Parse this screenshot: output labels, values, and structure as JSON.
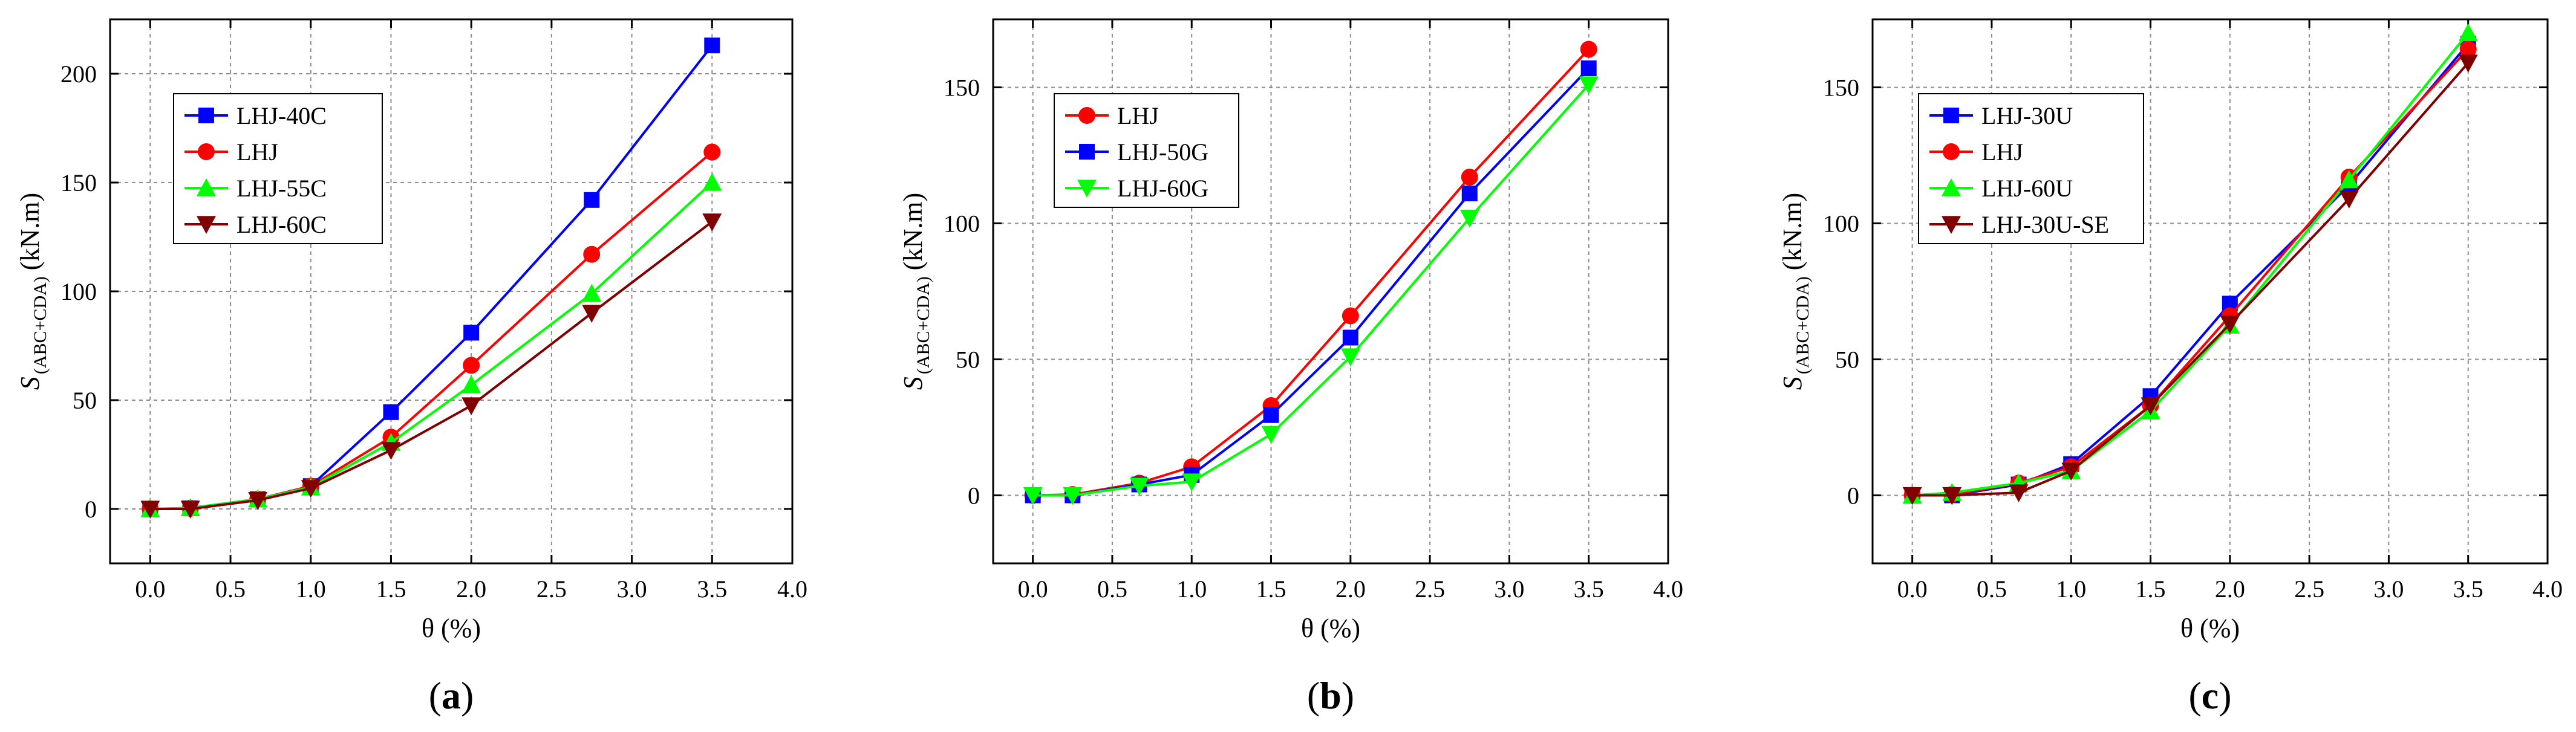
{
  "chart_data": [
    {
      "type": "line",
      "panel_label": "(a)",
      "panel_letter": "a",
      "xlabel": "θ (%)",
      "ylabel": "S (ABC+CDA) (kN.m)",
      "ylabel_main": "S",
      "ylabel_sub": "(ABC+CDA)",
      "ylabel_unit": "(kN.m)",
      "xlim": [
        -0.25,
        4.0
      ],
      "ylim": [
        -25,
        225
      ],
      "xticks": [
        "0.0",
        "0.5",
        "1.0",
        "1.5",
        "2.0",
        "2.5",
        "3.0",
        "3.5",
        "4.0"
      ],
      "yticks": [
        "0",
        "50",
        "100",
        "150",
        "200"
      ],
      "grid": true,
      "legend_position": "upper-left",
      "x": [
        0,
        0.25,
        0.67,
        1.0,
        1.5,
        2.0,
        2.75,
        3.5
      ],
      "series": [
        {
          "name": "LHJ-40C",
          "color": "#0000ff",
          "marker": "square",
          "values": [
            0,
            0.3,
            4.5,
            10.5,
            44.5,
            81,
            142,
            213
          ]
        },
        {
          "name": "LHJ",
          "color": "#ff0000",
          "marker": "circle",
          "values": [
            0,
            0.3,
            4.5,
            10.5,
            33,
            66,
            117,
            164
          ]
        },
        {
          "name": "LHJ-55C",
          "color": "#00ff00",
          "marker": "triangle-up",
          "values": [
            0,
            0.5,
            4.5,
            10,
            30.5,
            57,
            99,
            150
          ]
        },
        {
          "name": "LHJ-60C",
          "color": "#800000",
          "marker": "triangle-down",
          "values": [
            0,
            0,
            4,
            9.5,
            27,
            47.5,
            90,
            132
          ]
        }
      ]
    },
    {
      "type": "line",
      "panel_label": "(b)",
      "panel_letter": "b",
      "xlabel": "θ (%)",
      "ylabel": "S (ABC+CDA) (kN.m)",
      "ylabel_main": "S",
      "ylabel_sub": "(ABC+CDA)",
      "ylabel_unit": "(kN.m)",
      "xlim": [
        -0.25,
        4.0
      ],
      "ylim": [
        -25,
        175
      ],
      "xticks": [
        "0.0",
        "0.5",
        "1.0",
        "1.5",
        "2.0",
        "2.5",
        "3.0",
        "3.5",
        "4.0"
      ],
      "yticks": [
        "0",
        "50",
        "100",
        "150"
      ],
      "grid": true,
      "legend_position": "upper-left",
      "x": [
        0,
        0.25,
        0.67,
        1.0,
        1.5,
        2.0,
        2.75,
        3.5
      ],
      "series": [
        {
          "name": "LHJ",
          "color": "#ff0000",
          "marker": "circle",
          "values": [
            0,
            0.3,
            4.5,
            10.5,
            33,
            66,
            117,
            164
          ]
        },
        {
          "name": "LHJ-50G",
          "color": "#0000ff",
          "marker": "square",
          "values": [
            0,
            0,
            4,
            7.5,
            29.5,
            58,
            111,
            157
          ]
        },
        {
          "name": "LHJ-60G",
          "color": "#00ff00",
          "marker": "triangle-down",
          "values": [
            0,
            0,
            3.5,
            5,
            22.5,
            51,
            102,
            151
          ]
        }
      ]
    },
    {
      "type": "line",
      "panel_label": "(c)",
      "panel_letter": "c",
      "xlabel": "θ (%)",
      "ylabel": "S (ABC+CDA) (kN.m)",
      "ylabel_main": "S",
      "ylabel_sub": "(ABC+CDA)",
      "ylabel_unit": "(kN.m)",
      "xlim": [
        -0.25,
        4.0
      ],
      "ylim": [
        -25,
        175
      ],
      "xticks": [
        "0.0",
        "0.5",
        "1.0",
        "1.5",
        "2.0",
        "2.5",
        "3.0",
        "3.5",
        "4.0"
      ],
      "yticks": [
        "0",
        "50",
        "100",
        "150"
      ],
      "grid": true,
      "legend_position": "upper-left",
      "x": [
        0,
        0.25,
        0.67,
        1.0,
        1.5,
        2.0,
        2.75,
        3.5
      ],
      "series": [
        {
          "name": "LHJ-30U",
          "color": "#0000ff",
          "marker": "square",
          "values": [
            0,
            0,
            4,
            11.5,
            36.5,
            70.5,
            114,
            166
          ]
        },
        {
          "name": "LHJ",
          "color": "#ff0000",
          "marker": "circle",
          "values": [
            0,
            0.3,
            4.5,
            10.5,
            33,
            66,
            117,
            164
          ]
        },
        {
          "name": "LHJ-60U",
          "color": "#00ff00",
          "marker": "triangle-up",
          "values": [
            0,
            1,
            4.5,
            9,
            31,
            62.5,
            116,
            170
          ]
        },
        {
          "name": "LHJ-30U-SE",
          "color": "#800000",
          "marker": "triangle-down",
          "values": [
            0,
            0,
            1,
            9,
            33,
            63,
            109,
            159
          ]
        }
      ]
    }
  ]
}
